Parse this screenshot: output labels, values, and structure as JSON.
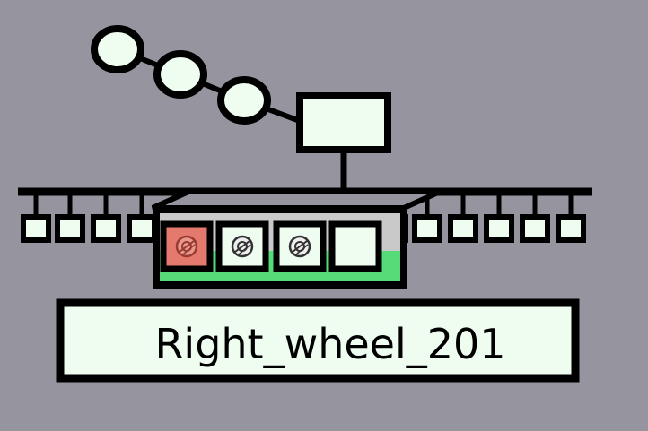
{
  "colors": {
    "background": "#96959f",
    "node_fill": "#effdf0",
    "stroke": "#000000",
    "selected_slot": "#e37a6d",
    "tray_green": "#56db79",
    "tray_gray": "#c9c9c9"
  },
  "tree": {
    "chain_nodes": 3,
    "bus_ports": 16
  },
  "selector": {
    "slots": [
      {
        "icon": "wheel-icon",
        "selected": true
      },
      {
        "icon": "wheel-icon",
        "selected": false
      },
      {
        "icon": "wheel-icon",
        "selected": false
      },
      {
        "icon": "",
        "selected": false
      }
    ]
  },
  "label": {
    "text": "Right_wheel_201"
  }
}
